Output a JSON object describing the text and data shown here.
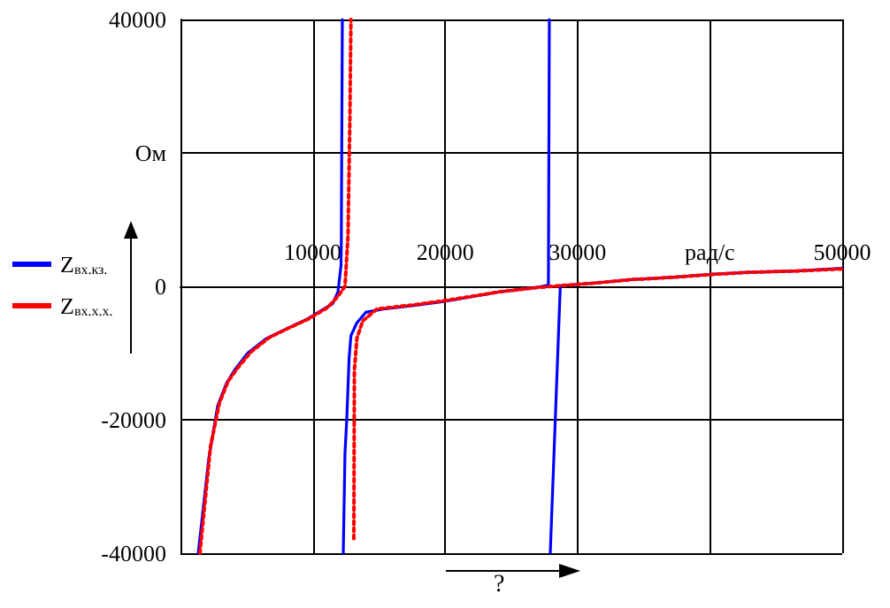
{
  "chart_data": {
    "type": "line",
    "xlabel": "?",
    "xlim": [
      0,
      50000
    ],
    "xticks": [
      {
        "value": 0,
        "label": null
      },
      10000,
      20000,
      30000,
      {
        "value": 40000,
        "label": "рад/с"
      },
      50000
    ],
    "ylim": [
      -40000,
      40000
    ],
    "yticks": [
      -40000,
      -20000,
      0,
      {
        "value": 20000,
        "label": "Ом"
      },
      40000
    ],
    "grid": true,
    "legend": "left",
    "marker": "none",
    "series": [
      {
        "name": "Z$_{вх.кз.}$",
        "color": "#0000ff",
        "line_style": "solid",
        "x": [
          1340,
          1740,
          2140,
          2810,
          3480,
          4140,
          5080,
          6420,
          7750,
          9490,
          10830,
          11500,
          11900,
          12130,
          12150,
          12230,
          12250,
          12300,
          12430,
          12570,
          12740,
          12880,
          13320,
          14000,
          15330,
          17510,
          19790,
          24200,
          26870,
          27800,
          27870,
          27900,
          27940,
          28700,
          31380,
          34050,
          37570,
          40240,
          42920,
          46530,
          50000
        ],
        "values": [
          -40000,
          -32900,
          -25800,
          -17900,
          -14500,
          -12400,
          -10000,
          -7900,
          -6600,
          -5000,
          -3400,
          -2600,
          -800,
          3100,
          5800,
          40000,
          null,
          -40000,
          -25000,
          -19700,
          -10800,
          -7400,
          -5500,
          -3900,
          -3400,
          -2900,
          -2300,
          -800,
          -200,
          200,
          40000,
          null,
          -40000,
          100,
          500,
          1000,
          1400,
          1800,
          2100,
          2300,
          2700
        ]
      },
      {
        "name": "Z$_{вх.х.х.}$",
        "color": "#ff0000",
        "line_style": "dotted",
        "x": [
          1470,
          1870,
          2270,
          2940,
          3610,
          4410,
          5350,
          6690,
          8020,
          9760,
          11100,
          11900,
          12430,
          12660,
          12800,
          12880,
          12900,
          13100,
          13140,
          13330,
          13770,
          14840,
          17510,
          19790,
          24200,
          26870,
          28700,
          31380,
          34050,
          37570,
          40240,
          42920,
          46530,
          50000
        ],
        "values": [
          -40000,
          -32000,
          -24000,
          -17500,
          -14200,
          -12000,
          -9800,
          -7700,
          -6400,
          -4800,
          -3200,
          -1500,
          0,
          7600,
          25000,
          40000,
          null,
          -37800,
          -12600,
          -7800,
          -5200,
          -3400,
          -2800,
          -2200,
          -800,
          -200,
          100,
          500,
          1000,
          1400,
          1800,
          2100,
          2300,
          2600
        ]
      }
    ]
  }
}
